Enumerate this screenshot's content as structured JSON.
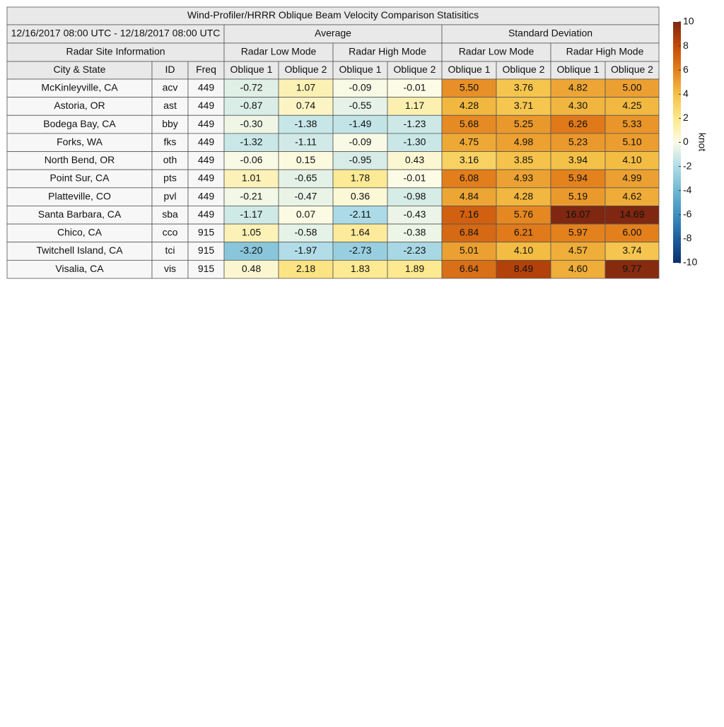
{
  "title": "Wind-Profiler/HRRR Oblique Beam Velocity Comparison Statisitics",
  "period": "12/16/2017 08:00 UTC - 12/18/2017 08:00 UTC",
  "site_header": "Radar Site Information",
  "groups": [
    "Average",
    "Standard Deviation"
  ],
  "modes": [
    "Radar Low Mode",
    "Radar High Mode",
    "Radar Low Mode",
    "Radar High Mode"
  ],
  "columns": [
    "City & State",
    "ID",
    "Freq",
    "Oblique 1",
    "Oblique 2",
    "Oblique 1",
    "Oblique 2",
    "Oblique 1",
    "Oblique 2",
    "Oblique 1",
    "Oblique 2"
  ],
  "rows": [
    [
      "McKinleyville, CA",
      "acv",
      "449",
      "-0.72",
      "1.07",
      "-0.09",
      "-0.01",
      "5.50",
      "3.76",
      "4.82",
      "5.00"
    ],
    [
      "Astoria, OR",
      "ast",
      "449",
      "-0.87",
      "0.74",
      "-0.55",
      "1.17",
      "4.28",
      "3.71",
      "4.30",
      "4.25"
    ],
    [
      "Bodega Bay, CA",
      "bby",
      "449",
      "-0.30",
      "-1.38",
      "-1.49",
      "-1.23",
      "5.68",
      "5.25",
      "6.26",
      "5.33"
    ],
    [
      "Forks, WA",
      "fks",
      "449",
      "-1.32",
      "-1.11",
      "-0.09",
      "-1.30",
      "4.75",
      "4.98",
      "5.23",
      "5.10"
    ],
    [
      "North Bend, OR",
      "oth",
      "449",
      "-0.06",
      "0.15",
      "-0.95",
      "0.43",
      "3.16",
      "3.85",
      "3.94",
      "4.10"
    ],
    [
      "Point Sur, CA",
      "pts",
      "449",
      "1.01",
      "-0.65",
      "1.78",
      "-0.01",
      "6.08",
      "4.93",
      "5.94",
      "4.99"
    ],
    [
      "Platteville, CO",
      "pvl",
      "449",
      "-0.21",
      "-0.47",
      "0.36",
      "-0.98",
      "4.84",
      "4.28",
      "5.19",
      "4.62"
    ],
    [
      "Santa Barbara, CA",
      "sba",
      "449",
      "-1.17",
      "0.07",
      "-2.11",
      "-0.43",
      "7.16",
      "5.76",
      "16.07",
      "14.69"
    ],
    [
      "Chico, CA",
      "cco",
      "915",
      "1.05",
      "-0.58",
      "1.64",
      "-0.38",
      "6.84",
      "6.21",
      "5.97",
      "6.00"
    ],
    [
      "Twitchell Island, CA",
      "tci",
      "915",
      "-3.20",
      "-1.97",
      "-2.73",
      "-2.23",
      "5.01",
      "4.10",
      "4.57",
      "3.74"
    ],
    [
      "Visalia, CA",
      "vis",
      "915",
      "0.48",
      "2.18",
      "1.83",
      "1.89",
      "6.64",
      "8.49",
      "4.60",
      "9.77"
    ]
  ],
  "colorbar": {
    "label": "knot",
    "lim": [
      -10,
      10
    ],
    "ticks": [
      10,
      8,
      6,
      4,
      2,
      0,
      -2,
      -4,
      -6,
      -8,
      -10
    ]
  }
}
